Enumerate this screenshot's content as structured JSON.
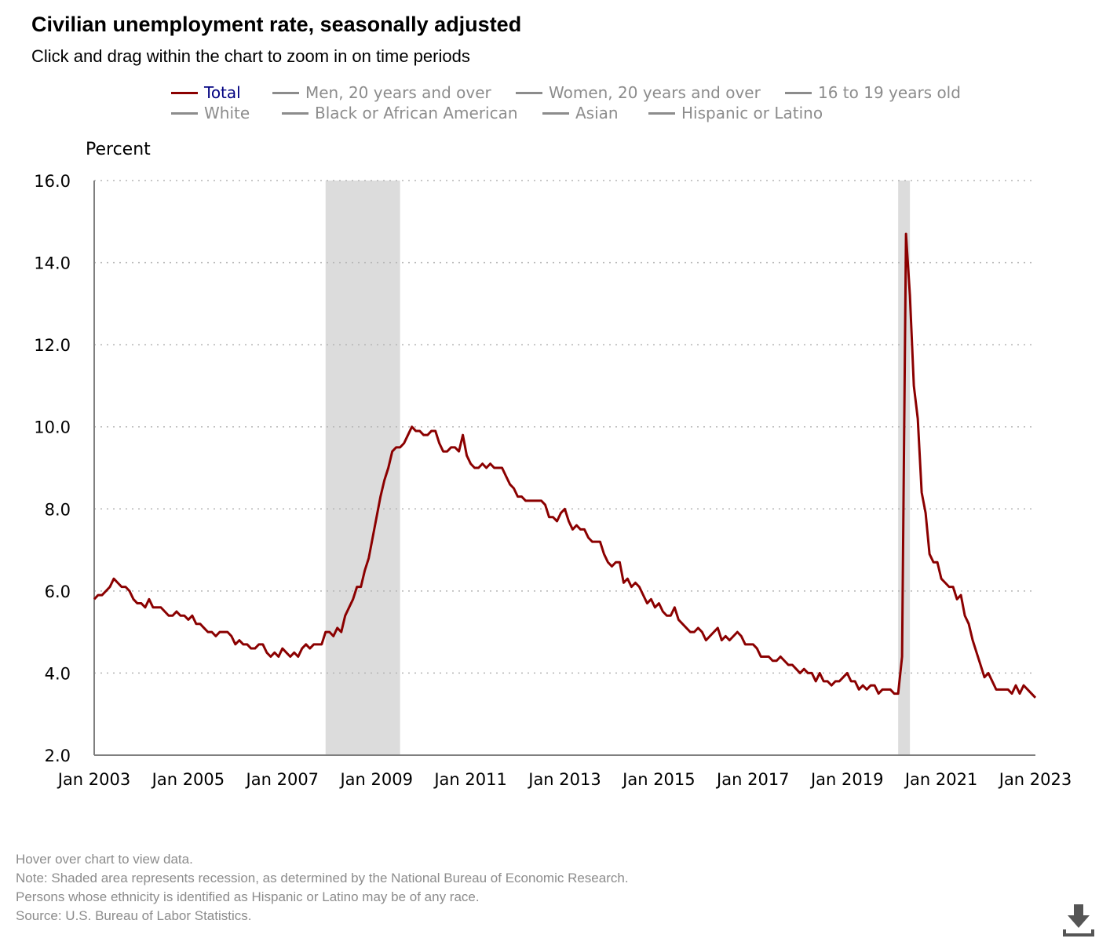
{
  "header": {
    "title": "Civilian unemployment rate, seasonally adjusted",
    "subtitle": "Click and drag within the chart to zoom in on time periods"
  },
  "legend": {
    "items": [
      {
        "label": "Total",
        "active": true
      },
      {
        "label": "Men, 20 years and over",
        "active": false
      },
      {
        "label": "Women, 20 years and over",
        "active": false
      },
      {
        "label": "16 to 19 years old",
        "active": false
      },
      {
        "label": "White",
        "active": false
      },
      {
        "label": "Black or African American",
        "active": false
      },
      {
        "label": "Asian",
        "active": false
      },
      {
        "label": "Hispanic or Latino",
        "active": false
      }
    ]
  },
  "colors": {
    "total_series": "#8b0000",
    "recession_shade": "#dcdcdc",
    "inactive": "#8c8c8c",
    "active_legend_text": "#000080"
  },
  "chart_data": {
    "type": "line",
    "ylabel": "Percent",
    "ylim": [
      2.0,
      16.0
    ],
    "y_ticks": [
      "2.0",
      "4.0",
      "6.0",
      "8.0",
      "10.0",
      "12.0",
      "14.0",
      "16.0"
    ],
    "x_ticks": [
      "Jan 2003",
      "Jan 2005",
      "Jan 2007",
      "Jan 2009",
      "Jan 2011",
      "Jan 2013",
      "Jan 2015",
      "Jan 2017",
      "Jan 2019",
      "Jan 2021",
      "Jan 2023"
    ],
    "x_start": "2003-01",
    "x_end": "2023-01",
    "grid": "horizontal dotted",
    "recessions": [
      {
        "start": "2007-12",
        "end": "2009-06"
      },
      {
        "start": "2020-02",
        "end": "2020-04"
      }
    ],
    "series": [
      {
        "name": "Total",
        "start": "2003-01",
        "frequency": "monthly",
        "values": [
          5.8,
          5.9,
          5.9,
          6.0,
          6.1,
          6.3,
          6.2,
          6.1,
          6.1,
          6.0,
          5.8,
          5.7,
          5.7,
          5.6,
          5.8,
          5.6,
          5.6,
          5.6,
          5.5,
          5.4,
          5.4,
          5.5,
          5.4,
          5.4,
          5.3,
          5.4,
          5.2,
          5.2,
          5.1,
          5.0,
          5.0,
          4.9,
          5.0,
          5.0,
          5.0,
          4.9,
          4.7,
          4.8,
          4.7,
          4.7,
          4.6,
          4.6,
          4.7,
          4.7,
          4.5,
          4.4,
          4.5,
          4.4,
          4.6,
          4.5,
          4.4,
          4.5,
          4.4,
          4.6,
          4.7,
          4.6,
          4.7,
          4.7,
          4.7,
          5.0,
          5.0,
          4.9,
          5.1,
          5.0,
          5.4,
          5.6,
          5.8,
          6.1,
          6.1,
          6.5,
          6.8,
          7.3,
          7.8,
          8.3,
          8.7,
          9.0,
          9.4,
          9.5,
          9.5,
          9.6,
          9.8,
          10.0,
          9.9,
          9.9,
          9.8,
          9.8,
          9.9,
          9.9,
          9.6,
          9.4,
          9.4,
          9.5,
          9.5,
          9.4,
          9.8,
          9.3,
          9.1,
          9.0,
          9.0,
          9.1,
          9.0,
          9.1,
          9.0,
          9.0,
          9.0,
          8.8,
          8.6,
          8.5,
          8.3,
          8.3,
          8.2,
          8.2,
          8.2,
          8.2,
          8.2,
          8.1,
          7.8,
          7.8,
          7.7,
          7.9,
          8.0,
          7.7,
          7.5,
          7.6,
          7.5,
          7.5,
          7.3,
          7.2,
          7.2,
          7.2,
          6.9,
          6.7,
          6.6,
          6.7,
          6.7,
          6.2,
          6.3,
          6.1,
          6.2,
          6.1,
          5.9,
          5.7,
          5.8,
          5.6,
          5.7,
          5.5,
          5.4,
          5.4,
          5.6,
          5.3,
          5.2,
          5.1,
          5.0,
          5.0,
          5.1,
          5.0,
          4.8,
          4.9,
          5.0,
          5.1,
          4.8,
          4.9,
          4.8,
          4.9,
          5.0,
          4.9,
          4.7,
          4.7,
          4.7,
          4.6,
          4.4,
          4.4,
          4.4,
          4.3,
          4.3,
          4.4,
          4.3,
          4.2,
          4.2,
          4.1,
          4.0,
          4.1,
          4.0,
          4.0,
          3.8,
          4.0,
          3.8,
          3.8,
          3.7,
          3.8,
          3.8,
          3.9,
          4.0,
          3.8,
          3.8,
          3.6,
          3.7,
          3.6,
          3.7,
          3.7,
          3.5,
          3.6,
          3.6,
          3.6,
          3.5,
          3.5,
          4.4,
          14.7,
          13.2,
          11.0,
          10.2,
          8.4,
          7.9,
          6.9,
          6.7,
          6.7,
          6.3,
          6.2,
          6.1,
          6.1,
          5.8,
          5.9,
          5.4,
          5.2,
          4.8,
          4.5,
          4.2,
          3.9,
          4.0,
          3.8,
          3.6,
          3.6,
          3.6,
          3.6,
          3.5,
          3.7,
          3.5,
          3.7,
          3.6,
          3.5,
          3.4
        ]
      }
    ]
  },
  "notes": [
    "Hover over chart to view data.",
    "Note: Shaded area represents recession, as determined by the National Bureau of Economic Research.",
    "Persons whose ethnicity is identified as Hispanic or Latino may be of any race.",
    "Source: U.S. Bureau of Labor Statistics."
  ],
  "download_icon": "download-icon"
}
